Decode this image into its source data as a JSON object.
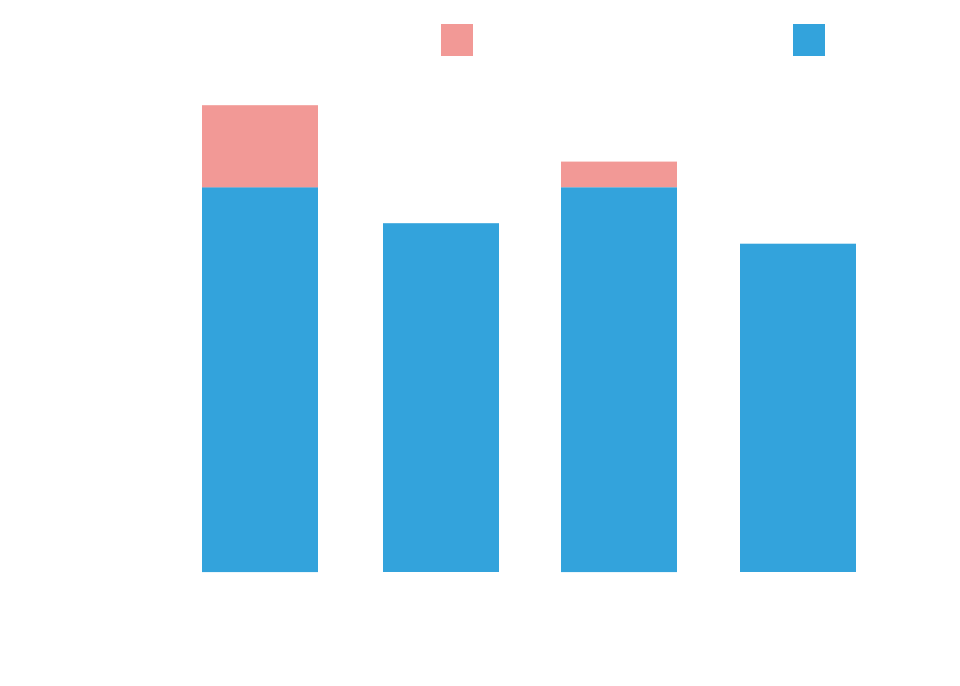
{
  "chart_data": {
    "type": "bar",
    "stacked": true,
    "categories": [
      "",
      "",
      "",
      ""
    ],
    "series": [
      {
        "color": "#33a3dc",
        "values": [
          75,
          68,
          75,
          64
        ]
      },
      {
        "color": "#f29996",
        "values": [
          16,
          0,
          5,
          0
        ]
      }
    ],
    "ylim": [
      0,
      100
    ],
    "grid": false,
    "legend": {
      "placement": "top"
    }
  }
}
